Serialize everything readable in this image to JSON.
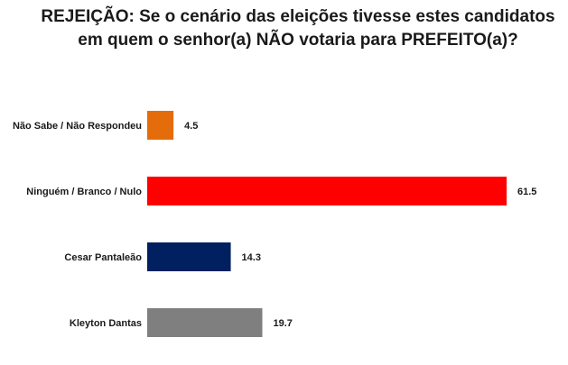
{
  "chart_data": {
    "type": "bar",
    "orientation": "horizontal",
    "title": "REJEIÇÃO: Se o cenário das eleições tivesse estes candidatos em quem o senhor(a) NÃO votaria para PREFEITO(a)?",
    "categories": [
      "Não Sabe / Não Respondeu",
      "Ninguém / Branco / Nulo",
      "Cesar Pantaleão",
      "Kleyton Dantas"
    ],
    "values": [
      4.5,
      61.5,
      14.3,
      19.7
    ],
    "value_labels": [
      "4.5",
      "61.5",
      "14.3",
      "19.7"
    ],
    "bar_colors": [
      "#E46C0A",
      "#FF0000",
      "#002060",
      "#7F7F7F"
    ],
    "xlabel": "",
    "ylabel": "",
    "xlim": [
      0,
      61.5
    ],
    "grid": false,
    "legend": "none"
  }
}
